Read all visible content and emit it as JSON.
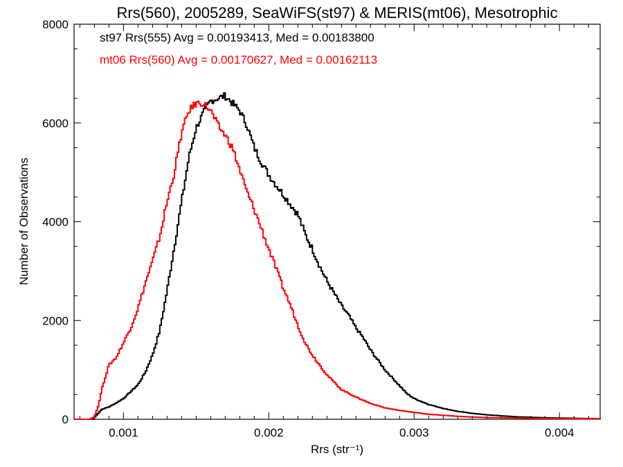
{
  "chart_data": {
    "type": "line",
    "title": "Rrs(560), 2005289, SeaWiFS(st97) & MERIS(mt06), Mesotrophic",
    "xlabel": "Rrs (str⁻¹)",
    "ylabel": "Number of Observations",
    "xlim": [
      0.00066,
      0.00428
    ],
    "ylim": [
      0,
      8000
    ],
    "x_ticks": [
      0.001,
      0.002,
      0.003,
      0.004
    ],
    "x_tick_labels": [
      "0.001",
      "0.002",
      "0.003",
      "0.004"
    ],
    "y_ticks": [
      0,
      2000,
      4000,
      6000,
      8000
    ],
    "y_tick_labels": [
      "0",
      "2000",
      "4000",
      "6000",
      "8000"
    ],
    "grid": false,
    "bin_width": 1e-05,
    "annotations": [
      {
        "text": "st97 Rrs(555) Avg = 0.00193413, Med = 0.00183800",
        "color": "#000000"
      },
      {
        "text": "mt06 Rrs(560) Avg = 0.00170627, Med = 0.00162113",
        "color": "#ff0000"
      }
    ],
    "series": [
      {
        "color": "#000000",
        "x": [
          0.00066,
          0.00079,
          0.00082,
          0.00085,
          0.0009,
          0.00095,
          0.001,
          0.00105,
          0.0011,
          0.00115,
          0.0012,
          0.00125,
          0.0013,
          0.00135,
          0.0014,
          0.00145,
          0.0015,
          0.00155,
          0.0016,
          0.00165,
          0.0017,
          0.00175,
          0.0018,
          0.00185,
          0.0019,
          0.00195,
          0.002,
          0.00205,
          0.0021,
          0.00215,
          0.0022,
          0.00225,
          0.0023,
          0.00235,
          0.0024,
          0.00245,
          0.0025,
          0.00255,
          0.0026,
          0.00265,
          0.0027,
          0.00275,
          0.0028,
          0.00285,
          0.0029,
          0.00295,
          0.003,
          0.0031,
          0.0032,
          0.0033,
          0.0034,
          0.0035,
          0.0036,
          0.0037,
          0.0038,
          0.0039,
          0.004,
          0.0041,
          0.0042,
          0.00428
        ],
        "values": [
          0,
          0,
          100,
          200,
          250,
          330,
          420,
          560,
          700,
          950,
          1300,
          1800,
          2600,
          3500,
          4400,
          5300,
          5900,
          6200,
          6450,
          6500,
          6550,
          6400,
          6250,
          5950,
          5500,
          5200,
          4950,
          4750,
          4550,
          4350,
          4150,
          3750,
          3450,
          3100,
          2800,
          2550,
          2300,
          2100,
          1850,
          1650,
          1400,
          1200,
          1000,
          840,
          680,
          520,
          420,
          300,
          220,
          160,
          120,
          90,
          70,
          50,
          40,
          30,
          25,
          20,
          15,
          10
        ]
      },
      {
        "color": "#ff0000",
        "x": [
          0.00066,
          0.00077,
          0.0008,
          0.00083,
          0.00085,
          0.0009,
          0.00095,
          0.001,
          0.00105,
          0.0011,
          0.00115,
          0.0012,
          0.00125,
          0.0013,
          0.00135,
          0.0014,
          0.00145,
          0.0015,
          0.00155,
          0.0016,
          0.00165,
          0.0017,
          0.00175,
          0.0018,
          0.00185,
          0.0019,
          0.00195,
          0.002,
          0.00205,
          0.0021,
          0.00215,
          0.0022,
          0.00225,
          0.0023,
          0.00235,
          0.0024,
          0.00245,
          0.0025,
          0.0026,
          0.0027,
          0.0028,
          0.0029,
          0.003,
          0.0031,
          0.0032,
          0.0033,
          0.0034,
          0.0035,
          0.0036,
          0.0037,
          0.0038,
          0.0039,
          0.004,
          0.0041,
          0.0042,
          0.00428
        ],
        "values": [
          0,
          0,
          50,
          300,
          600,
          1100,
          1250,
          1550,
          1850,
          2250,
          2750,
          3200,
          3700,
          4400,
          5000,
          5800,
          6250,
          6400,
          6400,
          6250,
          5950,
          5750,
          5500,
          5050,
          4600,
          4250,
          3850,
          3450,
          3050,
          2650,
          2300,
          1900,
          1550,
          1300,
          1100,
          900,
          750,
          600,
          450,
          320,
          230,
          180,
          140,
          100,
          80,
          60,
          45,
          35,
          30,
          25,
          20,
          15,
          12,
          10,
          10,
          5
        ]
      }
    ]
  }
}
